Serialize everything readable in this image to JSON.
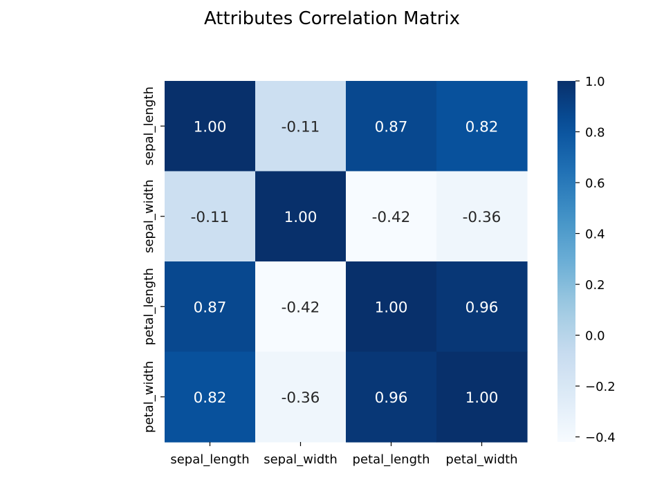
{
  "chart_data": {
    "type": "heatmap",
    "title": "Attributes Correlation Matrix",
    "xlabel": "",
    "ylabel": "",
    "x_labels": [
      "sepal_length",
      "sepal_width",
      "petal_length",
      "petal_width"
    ],
    "y_labels": [
      "sepal_length",
      "sepal_width",
      "petal_length",
      "petal_width"
    ],
    "values": [
      [
        1.0,
        -0.11,
        0.87,
        0.82
      ],
      [
        -0.11,
        1.0,
        -0.42,
        -0.36
      ],
      [
        0.87,
        -0.42,
        1.0,
        0.96
      ],
      [
        0.82,
        -0.36,
        0.96,
        1.0
      ]
    ],
    "annotations": [
      [
        "1.00",
        "-0.11",
        "0.87",
        "0.82"
      ],
      [
        "-0.11",
        "1.00",
        "-0.42",
        "-0.36"
      ],
      [
        "0.87",
        "-0.42",
        "1.00",
        "0.96"
      ],
      [
        "0.82",
        "-0.36",
        "0.96",
        "1.00"
      ]
    ],
    "colormap": "Blues",
    "vmin": -0.42,
    "vmax": 1.0,
    "colorbar": {
      "ticks": [
        1.0,
        0.8,
        0.6,
        0.4,
        0.2,
        0.0,
        -0.2,
        -0.4
      ],
      "tick_labels": [
        "1.0",
        "0.8",
        "0.6",
        "0.4",
        "0.2",
        "0.0",
        "−0.2",
        "−0.4"
      ]
    }
  }
}
